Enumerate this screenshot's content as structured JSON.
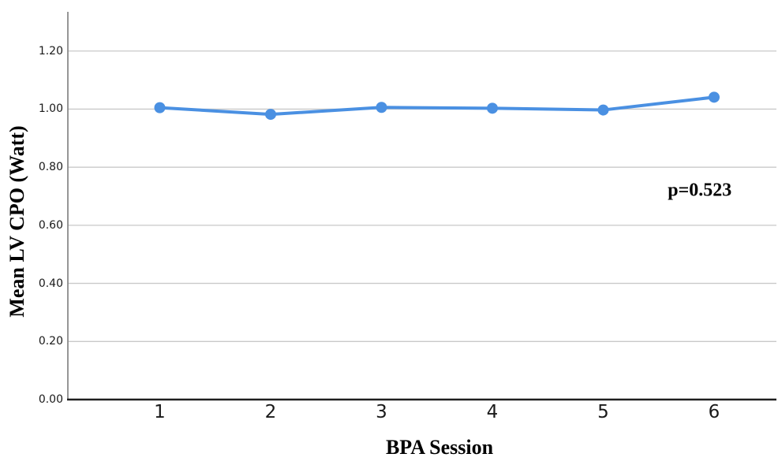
{
  "chart_data": {
    "type": "line",
    "title": "",
    "xlabel": "BPA Session",
    "ylabel": "Mean LV CPO (Watt)",
    "annotation": {
      "text": "p=0.523",
      "x": 5.87,
      "y": 0.72
    },
    "categories": [
      "1",
      "2",
      "3",
      "4",
      "5",
      "6"
    ],
    "series": [
      {
        "name": "Mean LV CPO (Watt)",
        "values": [
          1.005,
          0.982,
          1.006,
          1.003,
          0.997,
          1.041
        ]
      }
    ],
    "yticks": [
      0.0,
      0.2,
      0.4,
      0.6,
      0.8,
      1.0,
      1.2
    ],
    "ytick_labels": [
      "0.00",
      "0.20",
      "0.40",
      "0.60",
      "0.80",
      "1.00",
      "1.20"
    ],
    "ylim": [
      0,
      1.335
    ],
    "grid": true,
    "legend": false,
    "colors": {
      "line": "#4a90e2",
      "marker": "#4a90e2",
      "grid": "#c9c9c9",
      "y_axis": "#8b8b8b",
      "x_axis": "#1f1f1f",
      "tick_text": "#1a1a1a"
    }
  }
}
